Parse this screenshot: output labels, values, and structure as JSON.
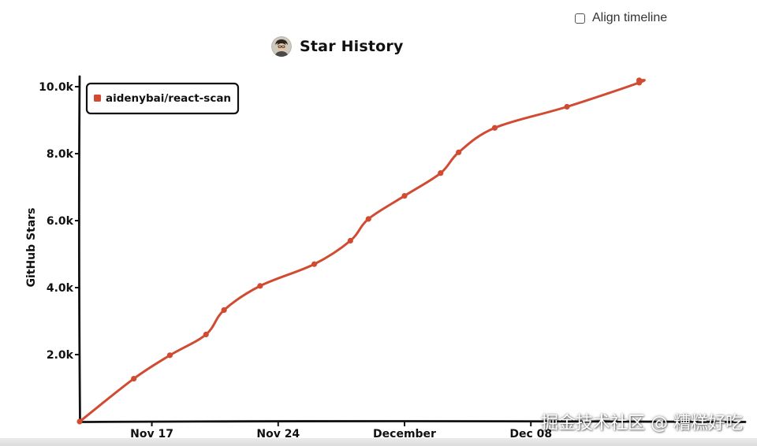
{
  "controls": {
    "align_timeline_label": "Align timeline",
    "align_timeline_checked": false
  },
  "header": {
    "title": "Star History",
    "avatar_icon": "user-avatar-icon"
  },
  "watermark": "掘金技术社区 @ 糟糕好吃",
  "chart_data": {
    "type": "line",
    "title": "Star History",
    "xlabel": "",
    "ylabel": "GitHub Stars",
    "x_range": [
      "2024-11-13",
      "2024-12-19"
    ],
    "ylim": [
      0,
      10400
    ],
    "y_ticks": [
      {
        "value": 2000,
        "label": "2.0k"
      },
      {
        "value": 4000,
        "label": "4.0k"
      },
      {
        "value": 6000,
        "label": "6.0k"
      },
      {
        "value": 8000,
        "label": "8.0k"
      },
      {
        "value": 10000,
        "label": "10.0k"
      }
    ],
    "x_ticks": [
      {
        "date": "2024-11-17",
        "label": "Nov 17"
      },
      {
        "date": "2024-11-24",
        "label": "Nov 24"
      },
      {
        "date": "2024-12-01",
        "label": "December"
      },
      {
        "date": "2024-12-08",
        "label": "Dec 08"
      }
    ],
    "grid": false,
    "legend": {
      "placement": "top-left",
      "entries": [
        "aidenybai/react-scan"
      ]
    },
    "series": [
      {
        "name": "aidenybai/react-scan",
        "color": "#d14b32",
        "points": [
          {
            "date": "2024-11-13",
            "y": 0
          },
          {
            "date": "2024-11-16",
            "y": 1280
          },
          {
            "date": "2024-11-18",
            "y": 1980
          },
          {
            "date": "2024-11-20",
            "y": 2600
          },
          {
            "date": "2024-11-21",
            "y": 3330
          },
          {
            "date": "2024-11-23",
            "y": 4050
          },
          {
            "date": "2024-11-26",
            "y": 4700
          },
          {
            "date": "2024-11-28",
            "y": 5400
          },
          {
            "date": "2024-11-29",
            "y": 6050
          },
          {
            "date": "2024-12-01",
            "y": 6740
          },
          {
            "date": "2024-12-03",
            "y": 7420
          },
          {
            "date": "2024-12-04",
            "y": 8040
          },
          {
            "date": "2024-12-06",
            "y": 8770
          },
          {
            "date": "2024-12-10",
            "y": 9400
          },
          {
            "date": "2024-12-14",
            "y": 10120
          },
          {
            "date": "2024-12-14",
            "y": 10190
          }
        ]
      }
    ]
  }
}
